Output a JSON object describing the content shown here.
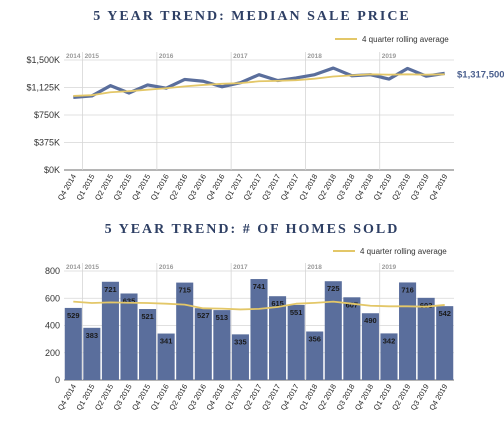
{
  "chart_data": [
    {
      "type": "line",
      "title": "5 YEAR TREND: MEDIAN SALE PRICE",
      "categories": [
        "Q4 2014",
        "Q1 2015",
        "Q2 2015",
        "Q3 2015",
        "Q4 2015",
        "Q1 2016",
        "Q2 2016",
        "Q3 2016",
        "Q4 2016",
        "Q1 2017",
        "Q2 2017",
        "Q3 2017",
        "Q4 2017",
        "Q1 2018",
        "Q2 2018",
        "Q3 2018",
        "Q4 2018",
        "Q1 2019",
        "Q2 2019",
        "Q3 2019",
        "Q4 2019"
      ],
      "series": [
        {
          "values": [
            990000,
            1010000,
            1150000,
            1050000,
            1160000,
            1115000,
            1235000,
            1210000,
            1135000,
            1190000,
            1300000,
            1220000,
            1255000,
            1300000,
            1390000,
            1285000,
            1300000,
            1240000,
            1385000,
            1280000,
            1317500
          ],
          "color": "#5a6e9c"
        },
        {
          "name": "4 quarter rolling average",
          "values": [
            1010000,
            1020000,
            1060000,
            1075000,
            1095000,
            1115000,
            1140000,
            1160000,
            1175000,
            1185000,
            1210000,
            1215000,
            1225000,
            1245000,
            1275000,
            1290000,
            1305000,
            1300000,
            1305000,
            1300000,
            1305000
          ],
          "color": "#e3c768"
        }
      ],
      "end_label": "$1,317,500",
      "yticks": [
        "$0K",
        "$375K",
        "$750K",
        "$1,125K",
        "$1,500K"
      ],
      "ylim": [
        0,
        1500000
      ],
      "year_labels": [
        "2014",
        "2015",
        "2016",
        "2017",
        "2018",
        "2019"
      ],
      "legend": "top-right",
      "grid": true
    },
    {
      "type": "bar",
      "title": "5 YEAR TREND: # OF HOMES SOLD",
      "categories": [
        "Q4 2014",
        "Q1 2015",
        "Q2 2015",
        "Q3 2015",
        "Q4 2015",
        "Q1 2016",
        "Q2 2016",
        "Q3 2016",
        "Q4 2016",
        "Q1 2017",
        "Q2 2017",
        "Q3 2017",
        "Q4 2017",
        "Q1 2018",
        "Q2 2018",
        "Q3 2018",
        "Q4 2018",
        "Q1 2019",
        "Q2 2019",
        "Q3 2019",
        "Q4 2019"
      ],
      "series": [
        {
          "values": [
            529,
            383,
            721,
            635,
            521,
            341,
            715,
            527,
            513,
            335,
            741,
            615,
            551,
            356,
            725,
            607,
            490,
            342,
            716,
            603,
            542
          ],
          "color": "#5a6e9c"
        },
        {
          "name": "4 quarter rolling average",
          "values": [
            575,
            565,
            570,
            567,
            565,
            560,
            553,
            526,
            524,
            518,
            522,
            536,
            560,
            566,
            575,
            560,
            545,
            541,
            541,
            538,
            551
          ],
          "color": "#e3c768"
        }
      ],
      "yticks": [
        "0",
        "200",
        "400",
        "600",
        "800"
      ],
      "ylim": [
        0,
        800
      ],
      "year_labels": [
        "2014",
        "2015",
        "2016",
        "2017",
        "2018",
        "2019"
      ],
      "legend": "top-right",
      "grid": true
    }
  ]
}
